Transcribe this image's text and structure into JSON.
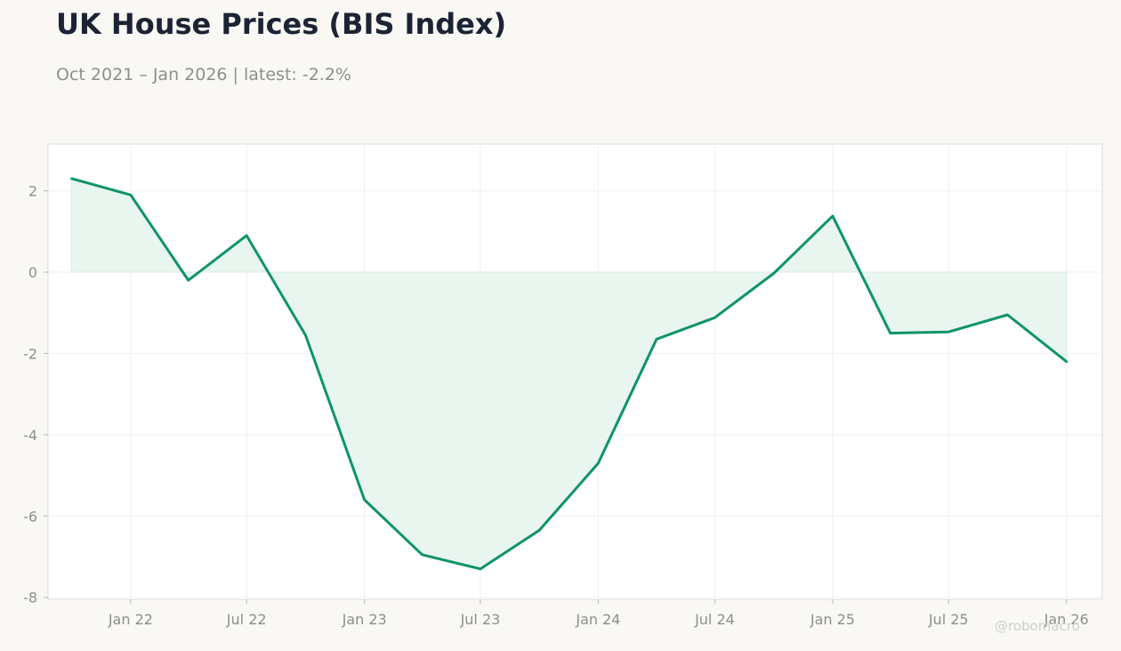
{
  "header": {
    "title": "UK House Prices (BIS Index)",
    "subtitle": "Oct 2021 – Jan 2026 | latest: -2.2%"
  },
  "watermark": "@robomacro",
  "colors": {
    "line": "#0f946a",
    "fill": "#e9f5ef",
    "grid": "#efefef",
    "zero_line": "#d9ece3",
    "axis_text": "#8e8e8e",
    "background": "#f9f8f5",
    "plot_background": "#ffffff"
  },
  "chart_data": {
    "type": "area",
    "title": "UK House Prices (BIS Index)",
    "xlabel": "",
    "ylabel": "",
    "x": [
      "2021-10",
      "2022-01",
      "2022-04",
      "2022-07",
      "2022-10",
      "2023-01",
      "2023-04",
      "2023-07",
      "2023-10",
      "2024-01",
      "2024-04",
      "2024-07",
      "2024-10",
      "2025-01",
      "2025-04",
      "2025-07",
      "2025-10",
      "2026-01"
    ],
    "values": [
      2.3,
      1.9,
      -0.2,
      0.9,
      -1.55,
      -5.6,
      -6.95,
      -7.3,
      -6.35,
      -4.7,
      -1.65,
      -1.12,
      -0.03,
      1.38,
      -1.5,
      -1.47,
      -1.05,
      -2.2
    ],
    "xticks": [
      {
        "date": "2022-01",
        "label": "Jan 22"
      },
      {
        "date": "2022-07",
        "label": "Jul 22"
      },
      {
        "date": "2023-01",
        "label": "Jan 23"
      },
      {
        "date": "2023-07",
        "label": "Jul 23"
      },
      {
        "date": "2024-01",
        "label": "Jan 24"
      },
      {
        "date": "2024-07",
        "label": "Jul 24"
      },
      {
        "date": "2025-01",
        "label": "Jan 25"
      },
      {
        "date": "2025-07",
        "label": "Jul 25"
      },
      {
        "date": "2026-01",
        "label": "Jan 26"
      }
    ],
    "yticks": [
      2,
      0,
      -2,
      -4,
      -6,
      -8
    ],
    "ytick_labels": [
      "2",
      "0",
      "-2",
      "-4",
      "-6",
      "-8"
    ],
    "xlim": [
      "2021-08-25",
      "2026-02-26"
    ],
    "ylim": [
      -8.05,
      3.15
    ],
    "fill_baseline": 0,
    "grid": true,
    "legend": "none"
  }
}
